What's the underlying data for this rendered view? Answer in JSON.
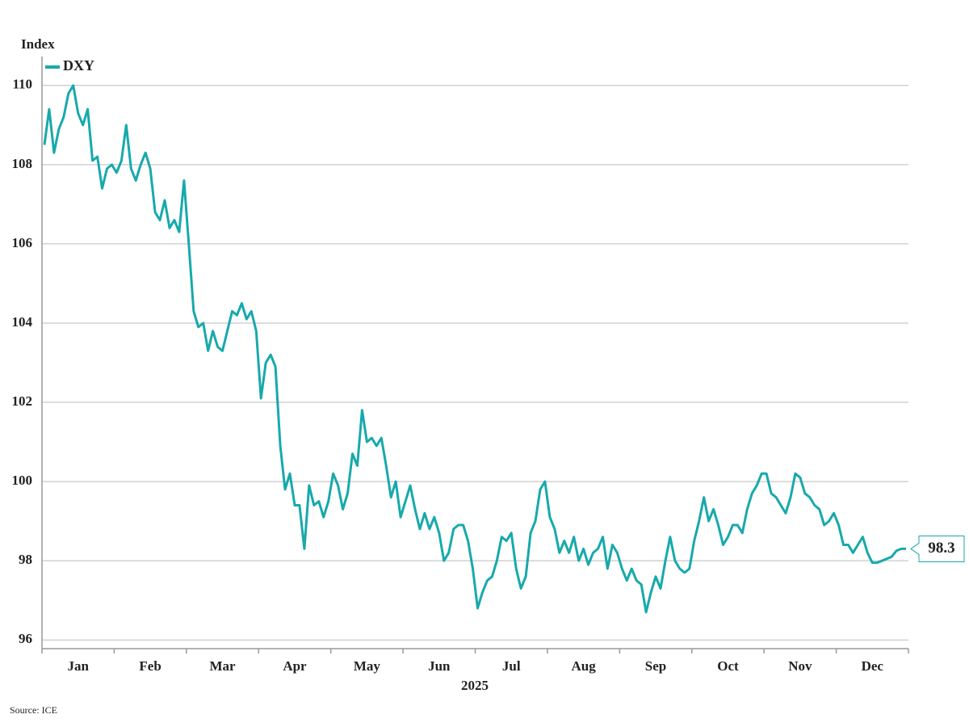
{
  "chart_data": {
    "type": "line",
    "y_label": "Index",
    "x_label": "2025",
    "source": "Source: ICE",
    "categories": [
      null,
      null,
      null,
      null,
      null,
      null,
      null,
      "Jan",
      null,
      null,
      null,
      null,
      null,
      null,
      null,
      null,
      null,
      null,
      null,
      null,
      null,
      null,
      "Feb",
      null,
      null,
      null,
      null,
      null,
      null,
      null,
      null,
      null,
      null,
      null,
      null,
      null,
      null,
      "Mar",
      null,
      null,
      null,
      null,
      null,
      null,
      null,
      null,
      null,
      null,
      null,
      null,
      null,
      null,
      "Apr",
      null,
      null,
      null,
      null,
      null,
      null,
      null,
      null,
      null,
      null,
      null,
      null,
      null,
      null,
      "May",
      null,
      null,
      null,
      null,
      null,
      null,
      null,
      null,
      null,
      null,
      null,
      null,
      null,
      null,
      "Jun",
      null,
      null,
      null,
      null,
      null,
      null,
      null,
      null,
      null,
      null,
      null,
      null,
      null,
      null,
      "Jul",
      null,
      null,
      null,
      null,
      null,
      null,
      null,
      null,
      null,
      null,
      null,
      null,
      null,
      null,
      "Aug",
      null,
      null,
      null,
      null,
      null,
      null,
      null,
      null,
      null,
      null,
      null,
      null,
      null,
      null,
      "Sep",
      null,
      null,
      null,
      null,
      null,
      null,
      null,
      null,
      null,
      null,
      null,
      null,
      null,
      null,
      "Oct",
      null,
      null,
      null,
      null,
      null,
      null,
      null,
      null,
      null,
      null,
      null,
      null,
      null,
      null,
      "Nov",
      null,
      null,
      null,
      null,
      null,
      null,
      null,
      null,
      null,
      null,
      null,
      null,
      null,
      null,
      "Dec",
      null,
      null,
      null,
      null,
      null,
      null,
      null
    ],
    "series": [
      {
        "name": "DXY",
        "color": "#17a9ac",
        "end_label": "98.3",
        "values": [
          108.5,
          109.4,
          108.3,
          108.9,
          109.2,
          109.8,
          110.0,
          109.3,
          109.0,
          109.4,
          108.1,
          108.2,
          107.4,
          107.9,
          108.0,
          107.8,
          108.1,
          109.0,
          107.9,
          107.6,
          108.0,
          108.3,
          107.9,
          106.8,
          106.6,
          107.1,
          106.4,
          106.6,
          106.3,
          107.6,
          106.0,
          104.3,
          103.9,
          104.0,
          103.3,
          103.8,
          103.4,
          103.3,
          103.8,
          104.3,
          104.2,
          104.5,
          104.1,
          104.3,
          103.8,
          102.1,
          103.0,
          103.2,
          102.9,
          100.9,
          99.8,
          100.2,
          99.4,
          99.4,
          98.3,
          99.9,
          99.4,
          99.5,
          99.1,
          99.5,
          100.2,
          99.9,
          99.3,
          99.7,
          100.7,
          100.4,
          101.8,
          101.0,
          101.1,
          100.9,
          101.1,
          100.4,
          99.6,
          100.0,
          99.1,
          99.5,
          99.9,
          99.3,
          98.8,
          99.2,
          98.8,
          99.1,
          98.7,
          98.0,
          98.2,
          98.8,
          98.9,
          98.9,
          98.5,
          97.8,
          96.8,
          97.2,
          97.5,
          97.6,
          98.0,
          98.6,
          98.5,
          98.7,
          97.8,
          97.3,
          97.6,
          98.7,
          99.0,
          99.8,
          100.0,
          99.1,
          98.8,
          98.2,
          98.5,
          98.2,
          98.6,
          98.0,
          98.3,
          97.9,
          98.2,
          98.3,
          98.6,
          97.8,
          98.4,
          98.2,
          97.8,
          97.5,
          97.8,
          97.5,
          97.4,
          96.7,
          97.2,
          97.6,
          97.3,
          98.0,
          98.6,
          98.0,
          97.8,
          97.7,
          97.8,
          98.5,
          99.0,
          99.6,
          99.0,
          99.3,
          98.9,
          98.4,
          98.6,
          98.9,
          98.9,
          98.7,
          99.3,
          99.7,
          99.9,
          100.2,
          100.2,
          99.7,
          99.6,
          99.4,
          99.2,
          99.6,
          100.2,
          100.1,
          99.7,
          99.6,
          99.4,
          99.3,
          98.9,
          99.0,
          99.2,
          98.9,
          98.4,
          98.4,
          98.2,
          98.4,
          98.6,
          98.2,
          97.95,
          97.95,
          98.0,
          98.05,
          98.1,
          98.25,
          98.3,
          98.3
        ]
      }
    ],
    "ylim": [
      95.78,
      110.73
    ],
    "yticks": [
      96,
      98,
      100,
      102,
      104,
      106,
      108,
      110
    ],
    "grid": true,
    "legend": "top-left"
  }
}
